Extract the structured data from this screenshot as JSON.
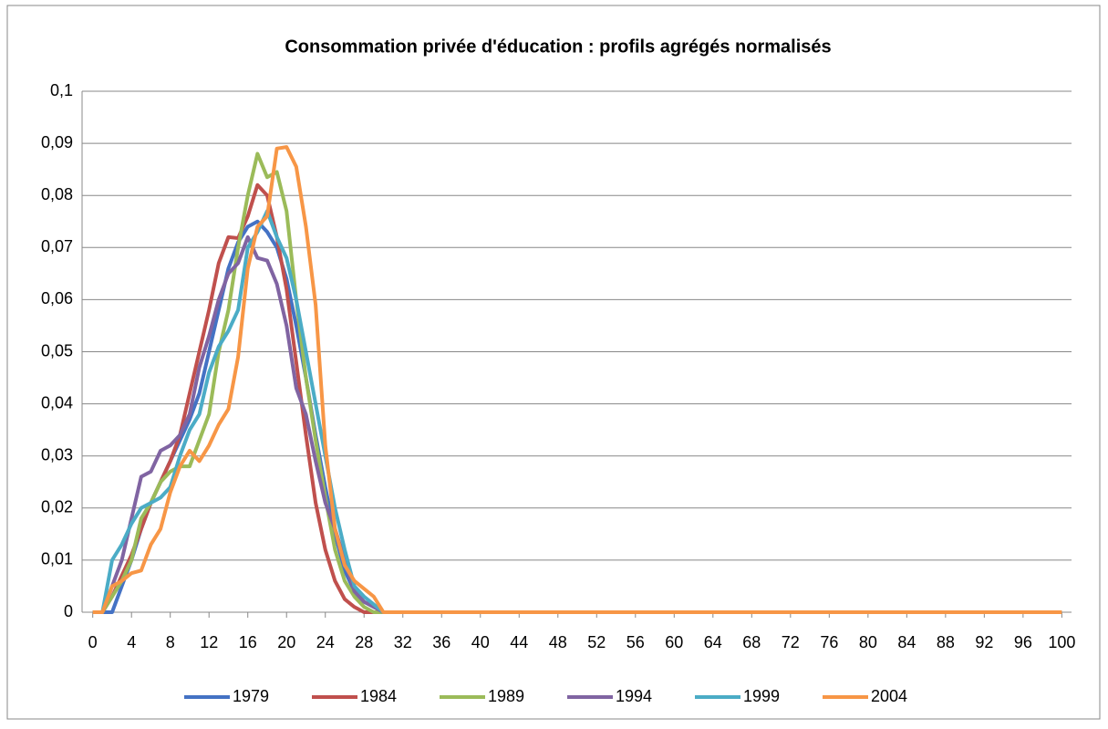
{
  "chart_data": {
    "type": "line",
    "title": "Consommation privée d'éducation : profils agrégés normalisés",
    "x": [
      0,
      1,
      2,
      3,
      4,
      5,
      6,
      7,
      8,
      9,
      10,
      11,
      12,
      13,
      14,
      15,
      16,
      17,
      18,
      19,
      20,
      21,
      22,
      23,
      24,
      25,
      26,
      27,
      28,
      29,
      30,
      100
    ],
    "series": [
      {
        "name": "1979",
        "color": "#4472c4",
        "values": [
          0,
          0,
          0,
          0.005,
          0.01,
          0.016,
          0.021,
          0.025,
          0.029,
          0.033,
          0.037,
          0.042,
          0.05,
          0.058,
          0.066,
          0.071,
          0.074,
          0.075,
          0.073,
          0.07,
          0.064,
          0.055,
          0.045,
          0.034,
          0.024,
          0.015,
          0.008,
          0.004,
          0.002,
          0.001,
          0,
          0
        ]
      },
      {
        "name": "1984",
        "color": "#c0504d",
        "values": [
          0,
          0,
          0.003,
          0.007,
          0.011,
          0.016,
          0.021,
          0.025,
          0.029,
          0.034,
          0.042,
          0.05,
          0.058,
          0.067,
          0.072,
          0.0718,
          0.076,
          0.082,
          0.08,
          0.072,
          0.062,
          0.048,
          0.034,
          0.021,
          0.012,
          0.006,
          0.0025,
          0.001,
          0,
          0,
          0,
          0
        ]
      },
      {
        "name": "1989",
        "color": "#9bbb59",
        "values": [
          0,
          0,
          0.003,
          0.006,
          0.01,
          0.018,
          0.021,
          0.025,
          0.027,
          0.028,
          0.028,
          0.033,
          0.038,
          0.05,
          0.058,
          0.07,
          0.08,
          0.088,
          0.0835,
          0.0845,
          0.077,
          0.06,
          0.045,
          0.033,
          0.022,
          0.012,
          0.006,
          0.003,
          0.001,
          0,
          0,
          0
        ]
      },
      {
        "name": "1994",
        "color": "#8064a2",
        "values": [
          0,
          0,
          0.005,
          0.01,
          0.018,
          0.026,
          0.027,
          0.031,
          0.032,
          0.034,
          0.038,
          0.047,
          0.053,
          0.06,
          0.065,
          0.067,
          0.072,
          0.068,
          0.0675,
          0.063,
          0.055,
          0.043,
          0.038,
          0.029,
          0.021,
          0.016,
          0.01,
          0.004,
          0.002,
          0.001,
          0,
          0
        ]
      },
      {
        "name": "1999",
        "color": "#4bacc6",
        "values": [
          0,
          0,
          0.01,
          0.013,
          0.017,
          0.02,
          0.021,
          0.022,
          0.024,
          0.03,
          0.035,
          0.038,
          0.046,
          0.051,
          0.054,
          0.058,
          0.07,
          0.073,
          0.077,
          0.072,
          0.068,
          0.06,
          0.05,
          0.04,
          0.03,
          0.02,
          0.012,
          0.005,
          0.003,
          0.0015,
          0,
          0
        ]
      },
      {
        "name": "2004",
        "color": "#f79646",
        "values": [
          0,
          0,
          0.005,
          0.006,
          0.0075,
          0.008,
          0.013,
          0.016,
          0.023,
          0.028,
          0.031,
          0.029,
          0.032,
          0.036,
          0.039,
          0.049,
          0.066,
          0.074,
          0.076,
          0.089,
          0.0893,
          0.0855,
          0.074,
          0.059,
          0.032,
          0.016,
          0.009,
          0.006,
          0.0045,
          0.003,
          0,
          0
        ]
      }
    ],
    "xlim": [
      -1.1,
      101
    ],
    "xticks": [
      0,
      4,
      8,
      12,
      16,
      20,
      24,
      28,
      32,
      36,
      40,
      44,
      48,
      52,
      56,
      60,
      64,
      68,
      72,
      76,
      80,
      84,
      88,
      92,
      96,
      100
    ],
    "ylim": [
      0,
      0.1
    ],
    "yticks": [
      0,
      {
        "value": 0.01,
        "label": "0,01"
      },
      {
        "value": 0.02,
        "label": "0,02"
      },
      {
        "value": 0.03,
        "label": "0,03"
      },
      {
        "value": 0.04,
        "label": "0,04"
      },
      {
        "value": 0.05,
        "label": "0,05"
      },
      {
        "value": 0.06,
        "label": "0,06"
      },
      {
        "value": 0.07,
        "label": "0,07"
      },
      {
        "value": 0.08,
        "label": "0,08"
      },
      {
        "value": 0.09,
        "label": "0,09"
      },
      {
        "value": 0.1,
        "label": "0,1"
      }
    ],
    "grid": true,
    "legend": "bottom"
  }
}
